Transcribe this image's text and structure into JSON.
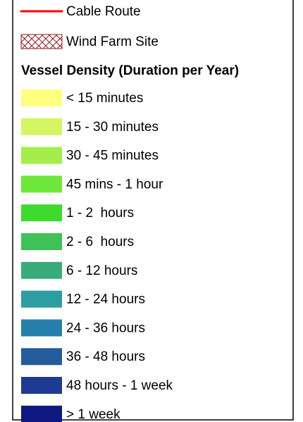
{
  "legend": {
    "cable_route": {
      "label": "Cable Route",
      "color": "#ff0000"
    },
    "wind_farm_site": {
      "label": "Wind Farm Site",
      "color": "#8b1a1a"
    },
    "section_title": "Vessel Density (Duration per Year)",
    "density_classes": [
      {
        "label": "< 15 minutes",
        "color": "#ffff80"
      },
      {
        "label": "15 - 30 minutes",
        "color": "#d4f564"
      },
      {
        "label": "30 - 45 minutes",
        "color": "#a3ee4a"
      },
      {
        "label": "45 mins - 1 hour",
        "color": "#6ee83a"
      },
      {
        "label": "1 - 2  hours",
        "color": "#3ddb2e"
      },
      {
        "label": "2 - 6  hours",
        "color": "#3ec157"
      },
      {
        "label": "6 - 12 hours",
        "color": "#38ad7a"
      },
      {
        "label": "12 - 24 hours",
        "color": "#2c9ea2"
      },
      {
        "label": "24 - 36 hours",
        "color": "#2680ab"
      },
      {
        "label": "36 - 48 hours",
        "color": "#255c9c"
      },
      {
        "label": "48 hours - 1 week",
        "color": "#1f3a92"
      },
      {
        "label": "> 1 week",
        "color": "#0f1880"
      }
    ]
  }
}
